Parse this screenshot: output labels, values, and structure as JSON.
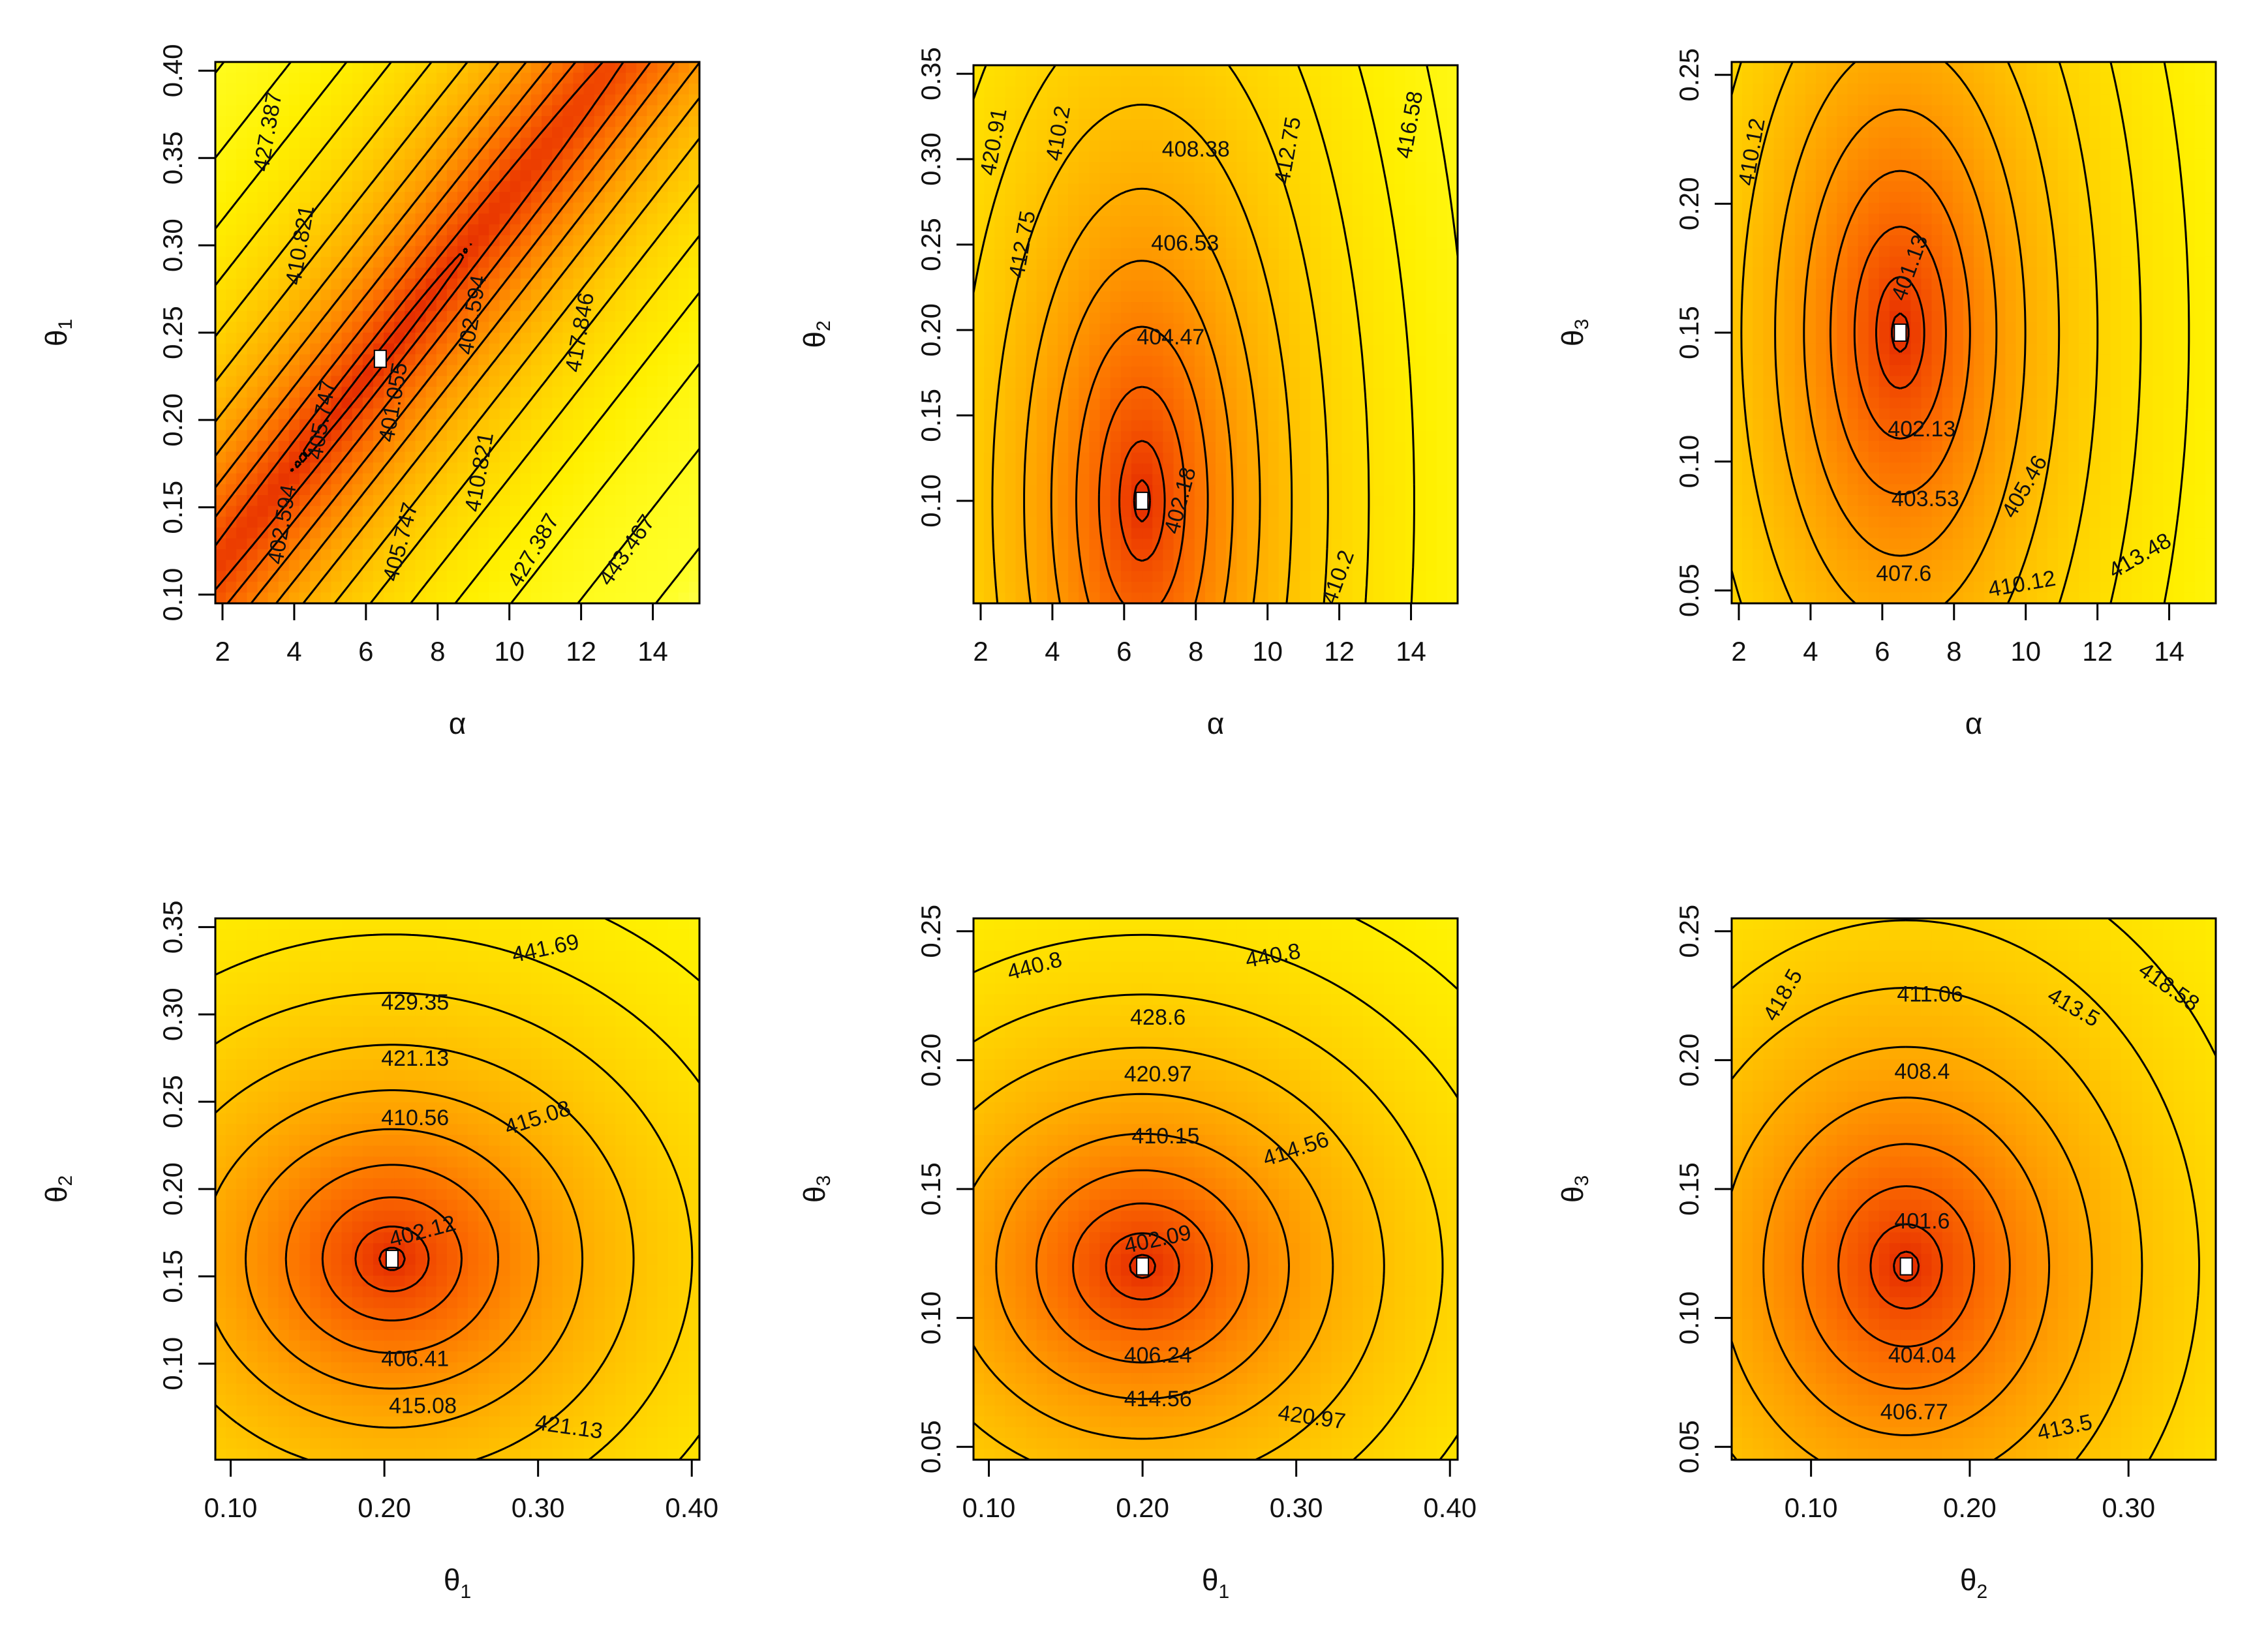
{
  "chart_data": [
    {
      "type": "contour",
      "xlabel": "α",
      "ylabel": "θ",
      "ylabel_sub": "1",
      "xlim": [
        1.8,
        15.3
      ],
      "ylim": [
        0.095,
        0.405
      ],
      "xticks": [
        2,
        4,
        6,
        8,
        10,
        12,
        14
      ],
      "xtick_labels": [
        "2",
        "4",
        "6",
        "8",
        "10",
        "12",
        "14"
      ],
      "yticks": [
        0.1,
        0.15,
        0.2,
        0.25,
        0.3,
        0.35,
        0.4
      ],
      "ytick_labels": [
        "0.10",
        "0.15",
        "0.20",
        "0.25",
        "0.30",
        "0.35",
        "0.40"
      ],
      "field": {
        "kind": "ridge",
        "cx": 6.4,
        "cy": 0.235,
        "fmin": 401.055,
        "ax": 9.0,
        "ay": 0.065,
        "axy": -2.2,
        "k": 0.9
      },
      "contour_labels": [
        {
          "text": "427.387",
          "x": 3.3,
          "y": 0.365,
          "rot": -80
        },
        {
          "text": "410.821",
          "x": 4.2,
          "y": 0.3,
          "rot": -80
        },
        {
          "text": "401.055",
          "x": 6.8,
          "y": 0.21,
          "rot": -80
        },
        {
          "text": "405.747",
          "x": 4.8,
          "y": 0.2,
          "rot": -80
        },
        {
          "text": "402.594",
          "x": 9.0,
          "y": 0.26,
          "rot": -80
        },
        {
          "text": "417.846",
          "x": 12.0,
          "y": 0.25,
          "rot": -80
        },
        {
          "text": "410.821",
          "x": 9.2,
          "y": 0.17,
          "rot": -80
        },
        {
          "text": "402.594",
          "x": 3.7,
          "y": 0.14,
          "rot": -80
        },
        {
          "text": "405.747",
          "x": 7.0,
          "y": 0.13,
          "rot": -75
        },
        {
          "text": "427.387",
          "x": 10.7,
          "y": 0.125,
          "rot": -60
        },
        {
          "text": "443.467",
          "x": 13.3,
          "y": 0.125,
          "rot": -55
        }
      ],
      "minimum": {
        "x": 6.4,
        "y": 0.235
      }
    },
    {
      "type": "contour",
      "xlabel": "α",
      "ylabel": "θ",
      "ylabel_sub": "2",
      "xlim": [
        1.8,
        15.3
      ],
      "ylim": [
        0.04,
        0.355
      ],
      "xticks": [
        2,
        4,
        6,
        8,
        10,
        12,
        14
      ],
      "xtick_labels": [
        "2",
        "4",
        "6",
        "8",
        "10",
        "12",
        "14"
      ],
      "yticks": [
        0.1,
        0.15,
        0.2,
        0.25,
        0.3,
        0.35
      ],
      "ytick_labels": [
        "0.10",
        "0.15",
        "0.20",
        "0.25",
        "0.30",
        "0.35"
      ],
      "field": {
        "kind": "ellipse",
        "cx": 6.5,
        "cy": 0.1,
        "fmin": 400.3,
        "ax": 1.05,
        "ay": 340,
        "k": 0.72
      },
      "contour_labels": [
        {
          "text": "420.91",
          "x": 2.4,
          "y": 0.31,
          "rot": -80
        },
        {
          "text": "410.2",
          "x": 4.2,
          "y": 0.315,
          "rot": -80
        },
        {
          "text": "412.75",
          "x": 3.2,
          "y": 0.25,
          "rot": -80
        },
        {
          "text": "408.38",
          "x": 8.0,
          "y": 0.305,
          "rot": 0
        },
        {
          "text": "412.75",
          "x": 10.6,
          "y": 0.305,
          "rot": -80
        },
        {
          "text": "416.58",
          "x": 14.0,
          "y": 0.32,
          "rot": -80
        },
        {
          "text": "406.53",
          "x": 7.7,
          "y": 0.25,
          "rot": 0
        },
        {
          "text": "404.47",
          "x": 7.3,
          "y": 0.195,
          "rot": 0
        },
        {
          "text": "402.18",
          "x": 7.6,
          "y": 0.1,
          "rot": -75
        },
        {
          "text": "410.2",
          "x": 12.0,
          "y": 0.055,
          "rot": -70
        }
      ],
      "minimum": {
        "x": 6.5,
        "y": 0.1
      }
    },
    {
      "type": "contour",
      "xlabel": "α",
      "ylabel": "θ",
      "ylabel_sub": "3",
      "xlim": [
        1.8,
        15.3
      ],
      "ylim": [
        0.045,
        0.255
      ],
      "xticks": [
        2,
        4,
        6,
        8,
        10,
        12,
        14
      ],
      "xtick_labels": [
        "2",
        "4",
        "6",
        "8",
        "10",
        "12",
        "14"
      ],
      "yticks": [
        0.05,
        0.1,
        0.15,
        0.2,
        0.25
      ],
      "ytick_labels": [
        "0.05",
        "0.10",
        "0.15",
        "0.20",
        "0.25"
      ],
      "field": {
        "kind": "ellipse",
        "cx": 6.5,
        "cy": 0.15,
        "fmin": 400.3,
        "ax": 1.3,
        "ay": 1250,
        "k": 0.85
      },
      "contour_labels": [
        {
          "text": "410.12",
          "x": 2.4,
          "y": 0.22,
          "rot": -80
        },
        {
          "text": "401.13",
          "x": 6.8,
          "y": 0.175,
          "rot": -70
        },
        {
          "text": "402.13",
          "x": 7.1,
          "y": 0.112,
          "rot": 0
        },
        {
          "text": "403.53",
          "x": 7.2,
          "y": 0.085,
          "rot": 0
        },
        {
          "text": "405.46",
          "x": 10.0,
          "y": 0.09,
          "rot": -60
        },
        {
          "text": "407.6",
          "x": 6.6,
          "y": 0.056,
          "rot": 0
        },
        {
          "text": "410.12",
          "x": 9.9,
          "y": 0.052,
          "rot": -10
        },
        {
          "text": "413.48",
          "x": 13.2,
          "y": 0.063,
          "rot": -30
        }
      ],
      "minimum": {
        "x": 6.5,
        "y": 0.15
      }
    },
    {
      "type": "contour",
      "xlabel": "θ",
      "xlabel_sub": "1",
      "ylabel": "θ",
      "ylabel_sub": "2",
      "xlim": [
        0.09,
        0.405
      ],
      "ylim": [
        0.045,
        0.355
      ],
      "xticks": [
        0.1,
        0.2,
        0.3,
        0.4
      ],
      "xtick_labels": [
        "0.10",
        "0.20",
        "0.30",
        "0.40"
      ],
      "yticks": [
        0.1,
        0.15,
        0.2,
        0.25,
        0.3,
        0.35
      ],
      "ytick_labels": [
        "0.10",
        "0.15",
        "0.20",
        "0.25",
        "0.30",
        "0.35"
      ],
      "field": {
        "kind": "ellipse",
        "cx": 0.205,
        "cy": 0.16,
        "fmin": 400.3,
        "ax": 700,
        "ay": 1150,
        "k": 0.7
      },
      "contour_labels": [
        {
          "text": "441.69",
          "x": 0.305,
          "y": 0.337,
          "rot": -12
        },
        {
          "text": "429.35",
          "x": 0.22,
          "y": 0.306,
          "rot": 0
        },
        {
          "text": "421.13",
          "x": 0.22,
          "y": 0.274,
          "rot": 0
        },
        {
          "text": "410.56",
          "x": 0.22,
          "y": 0.24,
          "rot": 0
        },
        {
          "text": "415.08",
          "x": 0.3,
          "y": 0.24,
          "rot": -18
        },
        {
          "text": "402.12",
          "x": 0.225,
          "y": 0.175,
          "rot": -15
        },
        {
          "text": "406.41",
          "x": 0.22,
          "y": 0.102,
          "rot": 0
        },
        {
          "text": "415.08",
          "x": 0.225,
          "y": 0.075,
          "rot": 0
        },
        {
          "text": "421.13",
          "x": 0.32,
          "y": 0.063,
          "rot": 8
        }
      ],
      "minimum": {
        "x": 0.205,
        "y": 0.16
      }
    },
    {
      "type": "contour",
      "xlabel": "θ",
      "xlabel_sub": "1",
      "ylabel": "θ",
      "ylabel_sub": "3",
      "xlim": [
        0.09,
        0.405
      ],
      "ylim": [
        0.045,
        0.255
      ],
      "xticks": [
        0.1,
        0.2,
        0.3,
        0.4
      ],
      "xtick_labels": [
        "0.10",
        "0.20",
        "0.30",
        "0.40"
      ],
      "yticks": [
        0.05,
        0.1,
        0.15,
        0.2,
        0.25
      ],
      "ytick_labels": [
        "0.05",
        "0.10",
        "0.15",
        "0.20",
        "0.25"
      ],
      "field": {
        "kind": "ellipse",
        "cx": 0.2,
        "cy": 0.12,
        "fmin": 400.3,
        "ax": 700,
        "ay": 2400,
        "k": 0.7
      },
      "contour_labels": [
        {
          "text": "440.8",
          "x": 0.13,
          "y": 0.236,
          "rot": -15
        },
        {
          "text": "440.8",
          "x": 0.285,
          "y": 0.24,
          "rot": -10
        },
        {
          "text": "428.6",
          "x": 0.21,
          "y": 0.216,
          "rot": 0
        },
        {
          "text": "420.97",
          "x": 0.21,
          "y": 0.194,
          "rot": 0
        },
        {
          "text": "410.15",
          "x": 0.215,
          "y": 0.17,
          "rot": 0
        },
        {
          "text": "414.56",
          "x": 0.3,
          "y": 0.165,
          "rot": -18
        },
        {
          "text": "402.09",
          "x": 0.21,
          "y": 0.13,
          "rot": -12
        },
        {
          "text": "406.24",
          "x": 0.21,
          "y": 0.085,
          "rot": 0
        },
        {
          "text": "414.56",
          "x": 0.21,
          "y": 0.068,
          "rot": 0
        },
        {
          "text": "420.97",
          "x": 0.31,
          "y": 0.061,
          "rot": 8
        }
      ],
      "minimum": {
        "x": 0.2,
        "y": 0.12
      }
    },
    {
      "type": "contour",
      "xlabel": "θ",
      "xlabel_sub": "2",
      "ylabel": "θ",
      "ylabel_sub": "3",
      "xlim": [
        0.05,
        0.355
      ],
      "ylim": [
        0.045,
        0.255
      ],
      "xticks": [
        0.1,
        0.2,
        0.3
      ],
      "xtick_labels": [
        "0.10",
        "0.20",
        "0.30"
      ],
      "yticks": [
        0.05,
        0.1,
        0.15,
        0.2,
        0.25
      ],
      "ytick_labels": [
        "0.05",
        "0.10",
        "0.15",
        "0.20",
        "0.25"
      ],
      "field": {
        "kind": "ellipse",
        "cx": 0.16,
        "cy": 0.12,
        "fmin": 400.3,
        "ax": 900,
        "ay": 1700,
        "k": 0.75
      },
      "contour_labels": [
        {
          "text": "418.5",
          "x": 0.083,
          "y": 0.225,
          "rot": -60
        },
        {
          "text": "411.06",
          "x": 0.175,
          "y": 0.225,
          "rot": 0
        },
        {
          "text": "413.5",
          "x": 0.265,
          "y": 0.22,
          "rot": 30
        },
        {
          "text": "418.58",
          "x": 0.325,
          "y": 0.228,
          "rot": 35
        },
        {
          "text": "408.4",
          "x": 0.17,
          "y": 0.195,
          "rot": 0
        },
        {
          "text": "401.6",
          "x": 0.17,
          "y": 0.137,
          "rot": 0
        },
        {
          "text": "404.04",
          "x": 0.17,
          "y": 0.085,
          "rot": 0
        },
        {
          "text": "406.77",
          "x": 0.165,
          "y": 0.063,
          "rot": 0
        },
        {
          "text": "413.5",
          "x": 0.26,
          "y": 0.057,
          "rot": -12
        }
      ],
      "minimum": {
        "x": 0.16,
        "y": 0.12
      }
    }
  ]
}
